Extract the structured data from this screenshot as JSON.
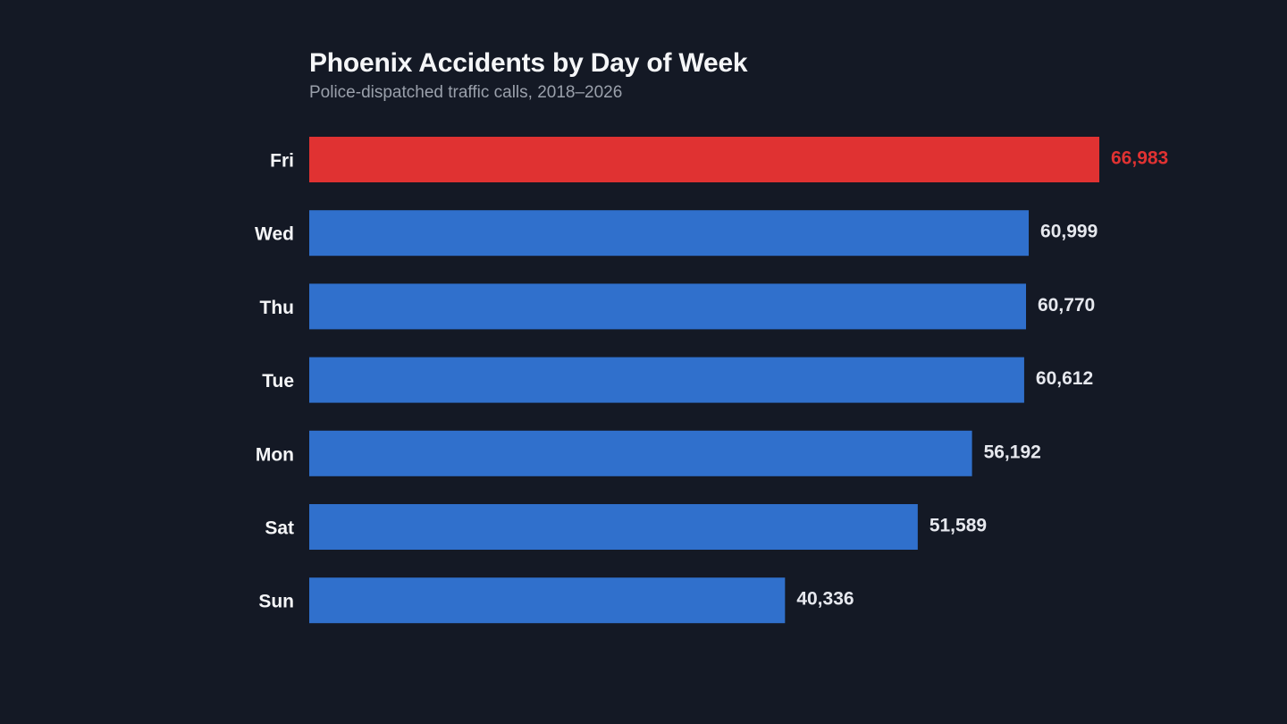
{
  "chart_data": {
    "type": "bar",
    "orientation": "horizontal",
    "title": "Phoenix Accidents by Day of Week",
    "subtitle": "Police-dispatched traffic calls, 2018–2026",
    "categories": [
      "Fri",
      "Wed",
      "Thu",
      "Tue",
      "Mon",
      "Sat",
      "Sun"
    ],
    "values": [
      66983,
      60999,
      60770,
      60612,
      56192,
      51589,
      40336
    ],
    "value_labels": [
      "66,983",
      "60,999",
      "60,770",
      "60,612",
      "56,192",
      "51,589",
      "40,336"
    ],
    "xlim": [
      0,
      66983
    ],
    "grid": false,
    "highlight_index": 0,
    "colors": {
      "bar": "#3070cc",
      "highlight": "#e03232",
      "value_label": "#e6e8ee",
      "highlight_label": "#e03232",
      "background": "#141925"
    }
  }
}
